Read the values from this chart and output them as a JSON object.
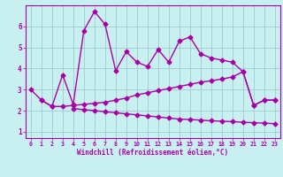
{
  "x": [
    0,
    1,
    2,
    3,
    4,
    5,
    6,
    7,
    8,
    9,
    10,
    11,
    12,
    13,
    14,
    15,
    16,
    17,
    18,
    19,
    20,
    21,
    22,
    23
  ],
  "line1": [
    3.0,
    2.5,
    2.2,
    3.7,
    2.3,
    5.8,
    6.7,
    6.1,
    3.9,
    4.8,
    4.3,
    4.1,
    4.9,
    4.3,
    5.3,
    5.5,
    4.7,
    4.5,
    4.4,
    4.3,
    3.85,
    2.25,
    2.5,
    2.5
  ],
  "line2_x": [
    4,
    5,
    6,
    7,
    8,
    9,
    10,
    11,
    12,
    13,
    14,
    15,
    16,
    17,
    18,
    19,
    20,
    21,
    22,
    23
  ],
  "line2_y": [
    2.1,
    2.05,
    2.0,
    1.95,
    1.9,
    1.85,
    1.8,
    1.75,
    1.7,
    1.65,
    1.6,
    1.58,
    1.55,
    1.52,
    1.5,
    1.48,
    1.45,
    1.43,
    1.41,
    1.38
  ],
  "line3_x": [
    1,
    2,
    3,
    4,
    5,
    6,
    7,
    8,
    9,
    10,
    11,
    12,
    13,
    14,
    15,
    16,
    17,
    18,
    19,
    20,
    21,
    22,
    23
  ],
  "line3_y": [
    2.5,
    2.2,
    2.2,
    2.25,
    2.3,
    2.35,
    2.4,
    2.5,
    2.6,
    2.75,
    2.85,
    2.95,
    3.05,
    3.15,
    3.25,
    3.35,
    3.42,
    3.5,
    3.6,
    3.85,
    2.25,
    2.5,
    2.5
  ],
  "color": "#AA00AA",
  "bg_color": "#C8F0F0",
  "grid_color": "#9DCCCC",
  "xlabel": "Windchill (Refroidissement éolien,°C)",
  "ylim": [
    0.7,
    7.0
  ],
  "xlim": [
    -0.5,
    23.5
  ],
  "yticks": [
    1,
    2,
    3,
    4,
    5,
    6
  ],
  "xticks": [
    0,
    1,
    2,
    3,
    4,
    5,
    6,
    7,
    8,
    9,
    10,
    11,
    12,
    13,
    14,
    15,
    16,
    17,
    18,
    19,
    20,
    21,
    22,
    23
  ],
  "markersize": 2.5,
  "linewidth": 1.0
}
